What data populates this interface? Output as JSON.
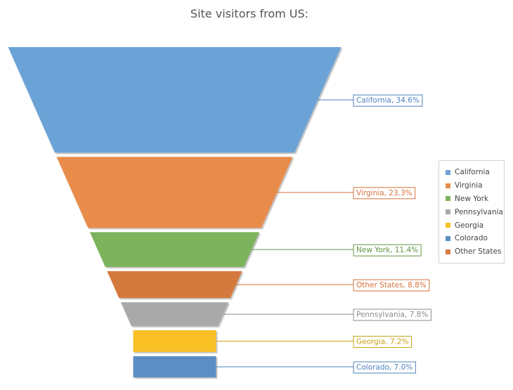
{
  "chart_data": {
    "type": "funnel",
    "title": "Site visitors from US:",
    "legend_position": "right",
    "segments": [
      {
        "name": "California",
        "value": 34.6,
        "label": "California, 34.6%",
        "color": "#6ca3d6"
      },
      {
        "name": "Virginia",
        "value": 23.3,
        "label": "Virginia, 23.3%",
        "color": "#e88c4c"
      },
      {
        "name": "New York",
        "value": 11.4,
        "label": "New York, 11.4%",
        "color": "#7db35d"
      },
      {
        "name": "Other States",
        "value": 8.8,
        "label": "Other States, 8.8%",
        "color": "#d57a3f"
      },
      {
        "name": "Pennsylvania",
        "value": 7.8,
        "label": "Pennsylvania, 7.8%",
        "color": "#a9a9a9"
      },
      {
        "name": "Georgia",
        "value": 7.2,
        "label": "Georgia, 7.2%",
        "color": "#f8c024"
      },
      {
        "name": "Colorado",
        "value": 7.0,
        "label": "Colorado, 7.0%",
        "color": "#5b8ec4"
      }
    ],
    "legend": [
      {
        "name": "California",
        "color": "#6ca3d6"
      },
      {
        "name": "Virginia",
        "color": "#e88c4c"
      },
      {
        "name": "New York",
        "color": "#7db35d"
      },
      {
        "name": "Pennsylvania",
        "color": "#a9a9a9"
      },
      {
        "name": "Georgia",
        "color": "#f8c024"
      },
      {
        "name": "Colorado",
        "color": "#5b8ec4"
      },
      {
        "name": "Other States",
        "color": "#d57a3f"
      }
    ]
  },
  "label_colors": {
    "California": "#4f81bd",
    "Virginia": "#d5703a",
    "New York": "#5f9545",
    "Other States": "#d5703a",
    "Pennsylvania": "#8c8c8c",
    "Georgia": "#c9a21a",
    "Colorado": "#4f81bd"
  }
}
